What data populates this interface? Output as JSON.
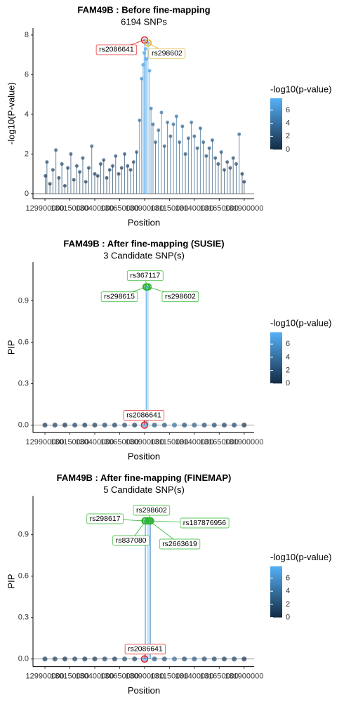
{
  "chart_data": [
    {
      "type": "scatter",
      "title": "FAM49B : Before fine-mapping",
      "subtitle": "6194 SNPs",
      "xlabel": "Position",
      "ylabel": "-log10(P-value)",
      "xlim": [
        129780000,
        132000000
      ],
      "xticks": [
        129900000,
        130150000,
        130400000,
        130650000,
        130900000,
        131150000,
        131400000,
        131650000,
        131900000
      ],
      "ylim": [
        -0.25,
        8.35
      ],
      "yticks": [
        0,
        2,
        4,
        6,
        8
      ],
      "hline": 0,
      "x": [
        129905000,
        129920000,
        129950000,
        129980000,
        130010000,
        130040000,
        130070000,
        130100000,
        130130000,
        130160000,
        130190000,
        130220000,
        130250000,
        130280000,
        130310000,
        130340000,
        130370000,
        130400000,
        130430000,
        130460000,
        130490000,
        130520000,
        130550000,
        130580000,
        130610000,
        130640000,
        130670000,
        130700000,
        130730000,
        130760000,
        130790000,
        130820000,
        130850000,
        130870000,
        130885000,
        130895000,
        130900000,
        130910000,
        130920000,
        130935000,
        130950000,
        130965000,
        130985000,
        131010000,
        131040000,
        131070000,
        131100000,
        131130000,
        131160000,
        131190000,
        131220000,
        131250000,
        131280000,
        131310000,
        131340000,
        131370000,
        131400000,
        131430000,
        131460000,
        131490000,
        131520000,
        131550000,
        131580000,
        131610000,
        131640000,
        131670000,
        131700000,
        131730000,
        131760000,
        131790000,
        131820000,
        131850000,
        131880000,
        131900000
      ],
      "values": [
        0.9,
        1.6,
        0.5,
        1.2,
        2.2,
        0.8,
        1.5,
        0.4,
        1.3,
        2.0,
        0.7,
        1.4,
        1.1,
        1.8,
        0.6,
        1.3,
        2.4,
        1.0,
        0.9,
        1.5,
        1.7,
        0.8,
        1.2,
        1.4,
        1.9,
        1.0,
        1.3,
        2.0,
        1.4,
        1.2,
        1.6,
        2.1,
        3.7,
        5.8,
        6.5,
        7.1,
        7.75,
        7.3,
        6.8,
        7.6,
        6.2,
        4.3,
        3.5,
        2.6,
        3.2,
        4.1,
        2.4,
        3.6,
        2.9,
        3.5,
        3.9,
        2.6,
        3.4,
        2.0,
        2.8,
        3.6,
        2.9,
        2.3,
        3.3,
        2.6,
        1.9,
        2.3,
        2.7,
        1.8,
        1.5,
        2.1,
        1.2,
        1.6,
        1.3,
        1.8,
        1.5,
        3.0,
        1.0,
        0.6
      ],
      "annotations": [
        {
          "label": "rs2086641",
          "x": 130900000,
          "y": 7.75,
          "color": "#e41a1c"
        },
        {
          "label": "rs298602",
          "x": 130935000,
          "y": 7.6,
          "color": "#e6a817"
        }
      ],
      "colorbar": {
        "title": "-log10(p-value)",
        "lim": [
          0,
          7.8
        ],
        "ticks": [
          0,
          2,
          4,
          6
        ],
        "colors": [
          "#132b43",
          "#56b1f7"
        ]
      }
    },
    {
      "type": "scatter",
      "title": "FAM49B : After fine-mapping (SUSIE)",
      "subtitle": "3 Candidate SNP(s)",
      "xlabel": "Position",
      "ylabel": "PIP",
      "xlim": [
        129780000,
        132000000
      ],
      "xticks": [
        129900000,
        130150000,
        130400000,
        130650000,
        130900000,
        131150000,
        131400000,
        131650000,
        131900000
      ],
      "ylim": [
        -0.055,
        1.18
      ],
      "yticks": [
        {
          "value": 0,
          "label": "0.0"
        },
        0.3,
        0.6,
        0.9
      ],
      "hline": 0,
      "x": [
        129900000,
        130000000,
        130100000,
        130200000,
        130300000,
        130400000,
        130500000,
        130600000,
        130700000,
        130800000,
        130900000,
        130915000,
        130920000,
        130935000,
        131000000,
        131100000,
        131200000,
        131300000,
        131400000,
        131500000,
        131600000,
        131700000,
        131800000,
        131900000
      ],
      "values": [
        0,
        0,
        0,
        0,
        0,
        0,
        0,
        0,
        0,
        0,
        0,
        1.0,
        1.0,
        1.0,
        0,
        0,
        0,
        0,
        0,
        0,
        0,
        0,
        0,
        0
      ],
      "color_values": [
        0.9,
        1.2,
        0.5,
        1.4,
        0.8,
        1.0,
        1.6,
        1.1,
        2.0,
        1.5,
        7.75,
        7.3,
        7.4,
        7.6,
        2.6,
        2.4,
        3.9,
        2.0,
        2.9,
        1.9,
        1.8,
        1.2,
        1.5,
        0.6
      ],
      "annotations": [
        {
          "label": "rs367117",
          "x": 130920000,
          "y": 1.0,
          "color": "#2ab52a"
        },
        {
          "label": "rs298615",
          "x": 130915000,
          "y": 1.0,
          "color": "#2ab52a"
        },
        {
          "label": "rs298602",
          "x": 130935000,
          "y": 1.0,
          "color": "#2ab52a"
        },
        {
          "label": "rs2086641",
          "x": 130900000,
          "y": 0,
          "color": "#e41a1c"
        }
      ],
      "colorbar": {
        "title": "-log10(p-value)",
        "lim": [
          0,
          7.8
        ],
        "ticks": [
          0,
          2,
          4,
          6
        ],
        "colors": [
          "#132b43",
          "#56b1f7"
        ]
      }
    },
    {
      "type": "scatter",
      "title": "FAM49B : After fine-mapping (FINEMAP)",
      "subtitle": "5 Candidate SNP(s)",
      "xlabel": "Position",
      "ylabel": "PIP",
      "xlim": [
        129780000,
        132000000
      ],
      "xticks": [
        129900000,
        130150000,
        130400000,
        130650000,
        130900000,
        131150000,
        131400000,
        131650000,
        131900000
      ],
      "ylim": [
        -0.055,
        1.18
      ],
      "yticks": [
        {
          "value": 0,
          "label": "0.0"
        },
        0.3,
        0.6,
        0.9
      ],
      "hline": 0,
      "x": [
        129900000,
        130000000,
        130100000,
        130200000,
        130300000,
        130400000,
        130500000,
        130600000,
        130700000,
        130800000,
        130900000,
        130905000,
        130912000,
        130935000,
        130950000,
        130960000,
        131000000,
        131100000,
        131200000,
        131300000,
        131400000,
        131500000,
        131600000,
        131700000,
        131800000,
        131900000
      ],
      "values": [
        0,
        0,
        0,
        0,
        0,
        0,
        0,
        0,
        0,
        0,
        0,
        1.0,
        1.0,
        1.0,
        1.0,
        1.0,
        0,
        0,
        0,
        0,
        0,
        0,
        0,
        0,
        0,
        0
      ],
      "color_values": [
        0.9,
        1.2,
        0.5,
        1.4,
        0.8,
        1.0,
        1.6,
        1.1,
        2.0,
        1.5,
        7.75,
        7.2,
        7.3,
        7.6,
        6.2,
        5.9,
        2.6,
        2.4,
        3.9,
        2.0,
        2.9,
        1.9,
        1.8,
        1.2,
        1.5,
        0.6
      ],
      "annotations": [
        {
          "label": "rs298602",
          "x": 130935000,
          "y": 1.0,
          "color": "#2ab52a"
        },
        {
          "label": "rs298617",
          "x": 130905000,
          "y": 1.0,
          "color": "#2ab52a"
        },
        {
          "label": "rs187876956",
          "x": 130960000,
          "y": 1.0,
          "color": "#2ab52a"
        },
        {
          "label": "rs837080",
          "x": 130912000,
          "y": 1.0,
          "color": "#2ab52a"
        },
        {
          "label": "rs2663619",
          "x": 130950000,
          "y": 1.0,
          "color": "#2ab52a"
        },
        {
          "label": "rs2086641",
          "x": 130900000,
          "y": 0,
          "color": "#e41a1c"
        }
      ],
      "colorbar": {
        "title": "-log10(p-value)",
        "lim": [
          0,
          7.8
        ],
        "ticks": [
          0,
          2,
          4,
          6
        ],
        "colors": [
          "#132b43",
          "#56b1f7"
        ]
      }
    }
  ]
}
